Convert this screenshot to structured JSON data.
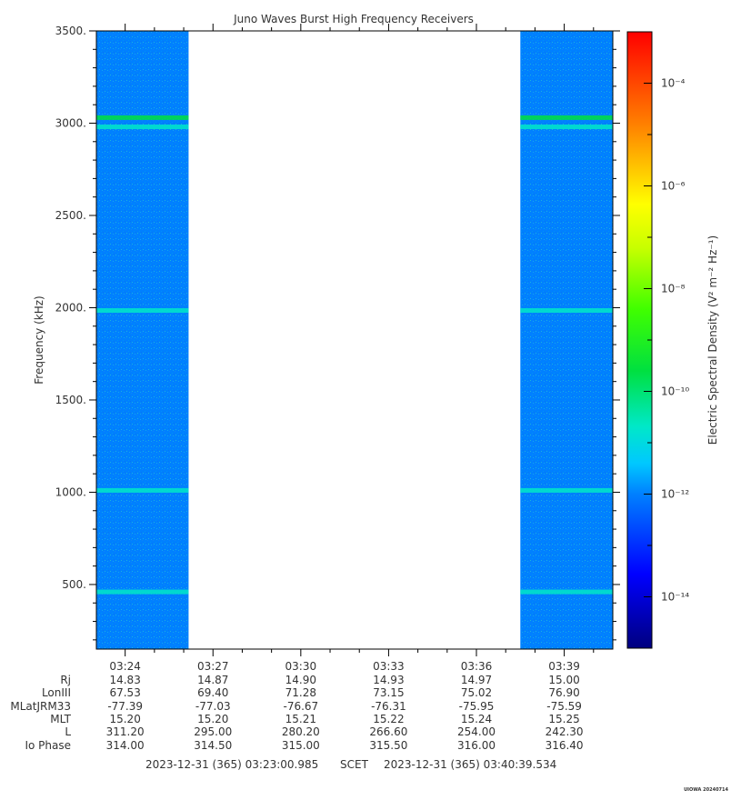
{
  "chart_data": {
    "type": "heatmap",
    "title": "Juno Waves Burst High Frequency Receivers",
    "ylabel": "Frequency (kHz)",
    "ylim": [
      150,
      3500
    ],
    "y_ticks": [
      "500.",
      "1000.",
      "1500.",
      "2000.",
      "2500.",
      "3000.",
      "3500."
    ],
    "x_ticks": [
      "03:24",
      "03:27",
      "03:30",
      "03:33",
      "03:36",
      "03:39"
    ],
    "x_range": [
      "03:23:00.985",
      "03:40:39.534"
    ],
    "data_intervals": [
      [
        "03:23:00",
        "03:26:10"
      ],
      [
        "03:37:30",
        "03:40:39"
      ]
    ],
    "background_level_exp": -12,
    "emission_bands_khz": [
      {
        "center": 3030,
        "level_exp": -10.5
      },
      {
        "center": 2980,
        "level_exp": -10.8
      },
      {
        "center": 1985,
        "level_exp": -10.8
      },
      {
        "center": 1010,
        "level_exp": -11.3
      },
      {
        "center": 460,
        "level_exp": -11.0
      }
    ],
    "colorbar": {
      "label": "Electric Spectral Density (V² m⁻² Hz⁻¹)",
      "range_exp": [
        -15,
        -3
      ],
      "tick_exponents": [
        -4,
        -6,
        -8,
        -10,
        -12,
        -14
      ],
      "tick_labels": [
        "10⁻⁴",
        "10⁻⁶",
        "10⁻⁸",
        "10⁻¹⁰",
        "10⁻¹²",
        "10⁻¹⁴"
      ]
    }
  },
  "ephemeris": {
    "rows": [
      {
        "label": "Rj",
        "values": [
          "14.83",
          "14.87",
          "14.90",
          "14.93",
          "14.97",
          "15.00"
        ]
      },
      {
        "label": "LonIII",
        "values": [
          "67.53",
          "69.40",
          "71.28",
          "73.15",
          "75.02",
          "76.90"
        ]
      },
      {
        "label": "MLatJRM33",
        "values": [
          "-77.39",
          "-77.03",
          "-76.67",
          "-76.31",
          "-75.95",
          "-75.59"
        ]
      },
      {
        "label": "MLT",
        "values": [
          "15.20",
          "15.20",
          "15.21",
          "15.22",
          "15.24",
          "15.25"
        ]
      },
      {
        "label": "L",
        "values": [
          "311.20",
          "295.00",
          "280.20",
          "266.60",
          "254.00",
          "242.30"
        ]
      },
      {
        "label": "Io Phase",
        "values": [
          "314.00",
          "314.50",
          "315.00",
          "315.50",
          "316.00",
          "316.40"
        ]
      }
    ]
  },
  "footer": {
    "start": "2023-12-31 (365) 03:23:00.985",
    "scet": "SCET",
    "end": "2023-12-31 (365) 03:40:39.534"
  },
  "stamp": "UIOWA 20240714"
}
